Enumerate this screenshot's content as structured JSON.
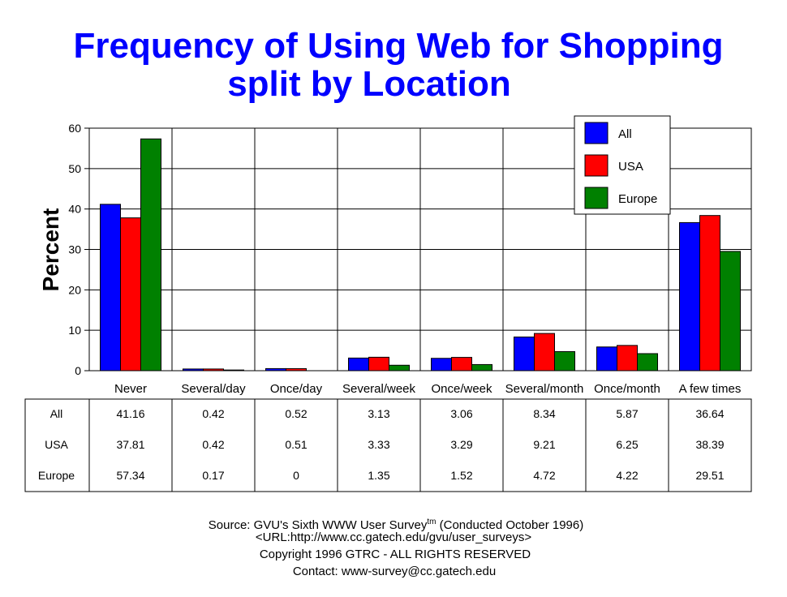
{
  "chart_data": {
    "type": "bar",
    "title": "Frequency of Using Web for Shopping",
    "subtitle": "split by Location",
    "ylabel": "Percent",
    "xlabel": "",
    "ylim": [
      0,
      60
    ],
    "yticks": [
      "0",
      "10",
      "20",
      "30",
      "40",
      "50",
      "60"
    ],
    "grid": true,
    "legend_position": "top-right",
    "categories": [
      "Never",
      "Several/day",
      "Once/day",
      "Several/week",
      "Once/week",
      "Several/month",
      "Once/month",
      "A few times"
    ],
    "series": [
      {
        "name": "All",
        "color": "#0000ff",
        "values": [
          41.16,
          0.42,
          0.52,
          3.13,
          3.06,
          8.34,
          5.87,
          36.64
        ]
      },
      {
        "name": "USA",
        "color": "#ff0000",
        "values": [
          37.81,
          0.42,
          0.51,
          3.33,
          3.29,
          9.21,
          6.25,
          38.39
        ]
      },
      {
        "name": "Europe",
        "color": "#008000",
        "values": [
          57.34,
          0.17,
          0,
          1.35,
          1.52,
          4.72,
          4.22,
          29.51
        ]
      }
    ],
    "table": {
      "rows": [
        {
          "label": "All",
          "cells": [
            "41.16",
            "0.42",
            "0.52",
            "3.13",
            "3.06",
            "8.34",
            "5.87",
            "36.64"
          ]
        },
        {
          "label": "USA",
          "cells": [
            "37.81",
            "0.42",
            "0.51",
            "3.33",
            "3.29",
            "9.21",
            "6.25",
            "38.39"
          ]
        },
        {
          "label": "Europe",
          "cells": [
            "57.34",
            "0.17",
            "0",
            "1.35",
            "1.52",
            "4.72",
            "4.22",
            "29.51"
          ]
        }
      ]
    }
  },
  "footer": {
    "source_prefix": "Source: GVU's Sixth WWW User Survey",
    "source_sup": "tm",
    "source_suffix": "(Conducted October 1996)",
    "url": "<URL:http://www.cc.gatech.edu/gvu/user_surveys>",
    "copyright": "Copyright 1996 GTRC -  ALL RIGHTS RESERVED",
    "contact": "Contact: www-survey@cc.gatech.edu"
  }
}
